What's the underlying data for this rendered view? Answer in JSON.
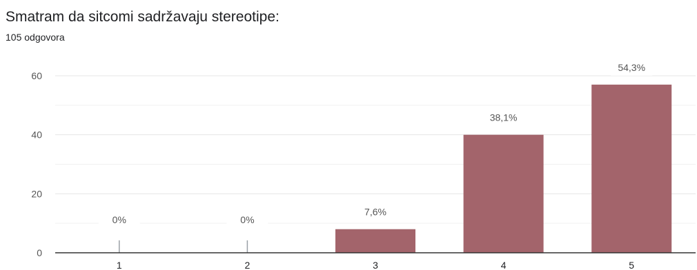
{
  "question": {
    "title": "Smatram da sitcomi sadržavaju stereotipe:",
    "responses": "105 odgovora"
  },
  "colors": {
    "bar": "#a3646b",
    "gridline": "#e6e6e6",
    "baseline": "#333333",
    "text": "#202124",
    "label": "#555555"
  },
  "chart_data": {
    "type": "bar",
    "categories": [
      "1",
      "2",
      "3",
      "4",
      "5"
    ],
    "values": [
      0,
      0,
      8,
      40,
      57
    ],
    "data_labels": [
      "0%",
      "0%",
      "7,6%",
      "38,1%",
      "54,3%"
    ],
    "yticks": [
      "0",
      "20",
      "40",
      "60"
    ],
    "ylim": [
      0,
      60
    ],
    "grid": true,
    "legend": "none"
  }
}
